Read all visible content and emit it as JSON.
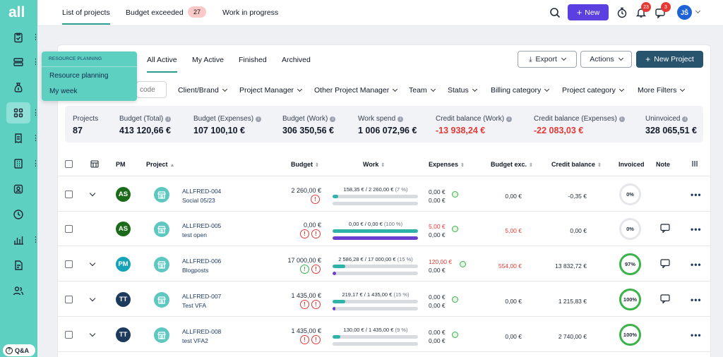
{
  "app": {
    "logo": "all"
  },
  "topbar": {
    "tabs": [
      {
        "label": "List of projects",
        "active": true
      },
      {
        "label": "Budget exceeded",
        "badge": "27"
      },
      {
        "label": "Work in progress"
      }
    ],
    "new_label": "New",
    "alerts_badge": "23",
    "messages_badge": "3",
    "user_initials": "JŠ"
  },
  "dropdown": {
    "header": "RESOURCE PLANNING",
    "items": [
      "Resource planning",
      "My week"
    ]
  },
  "subtabs": [
    "All Active",
    "My Active",
    "Finished",
    "Archived"
  ],
  "toolbar": {
    "export": "Export",
    "actions": "Actions",
    "new_project": "New Project"
  },
  "search": {
    "placeholder": "code"
  },
  "filters": [
    "Client/Brand",
    "Project Manager",
    "Other Project Manager",
    "Team",
    "Status",
    "Billing category",
    "Project category",
    "More Filters"
  ],
  "stats": [
    {
      "label": "Projects",
      "value": "87"
    },
    {
      "label": "Budget (Total)",
      "value": "413 120,66 €"
    },
    {
      "label": "Budget (Expenses)",
      "value": "107 100,10 €"
    },
    {
      "label": "Budget (Work)",
      "value": "306 350,56 €"
    },
    {
      "label": "Work spend",
      "value": "1 006 072,96 €"
    },
    {
      "label": "Credit balance (Work)",
      "value": "-13 938,24 €"
    },
    {
      "label": "Credit balance (Expenses)",
      "value": "-22 083,03 €"
    },
    {
      "label": "Uninvoiced",
      "value": "328 065,51 €"
    }
  ],
  "columns": {
    "pm": "PM",
    "project": "Project",
    "budget": "Budget",
    "work": "Work",
    "expenses": "Expenses",
    "budget_exc": "Budget exc.",
    "credit_balance": "Credit balance",
    "invoiced": "Invoiced",
    "note": "Note"
  },
  "rows": [
    {
      "pm": "AS",
      "pm_color": "#1b6b1b",
      "code": "ALLFRED-004",
      "name": "Social 05/23",
      "budget": "2 260,00 €",
      "work_spent": "158,35 €",
      "work_budget": "2 260,00 €",
      "work_pct": "(7 %)",
      "work_fill": 0.07,
      "exp_fill": 0.0,
      "exp1": "0,00 €",
      "exp2": "0,00 €",
      "budget_exc": "0,00 €",
      "credit": "-0,35 €",
      "invoiced": "0%",
      "has_note": false
    },
    {
      "pm": "AS",
      "pm_color": "#1b6b1b",
      "code": "ALLFRED-005",
      "name": "test open",
      "budget": "0,00 €",
      "work_spent": "0,00 €",
      "work_budget": "0,00 €",
      "work_pct": "(100 %)",
      "work_fill": 1.0,
      "exp_fill": 1.0,
      "exp1": "5,00 €",
      "exp2": "0,00 €",
      "budget_exc": "5,00 €",
      "credit": "0,00 €",
      "invoiced": "0%",
      "has_note": true
    },
    {
      "pm": "PM",
      "pm_color": "#14a3b8",
      "code": "ALLFRED-006",
      "name": "Blogposts",
      "budget": "17 000,00 €",
      "work_spent": "2 586,28 €",
      "work_budget": "17 000,00 €",
      "work_pct": "(15 %)",
      "work_fill": 0.15,
      "exp_fill": 0.04,
      "exp1": "120,00 €",
      "exp2": "0,00 €",
      "budget_exc": "554,00 €",
      "credit": "13 832,72 €",
      "invoiced": "97%",
      "has_note": true
    },
    {
      "pm": "TT",
      "pm_color": "#1c3a5c",
      "code": "ALLFRED-007",
      "name": "Test VFA",
      "budget": "1 435,00 €",
      "work_spent": "219,17 €",
      "work_budget": "1 435,00 €",
      "work_pct": "(15 %)",
      "work_fill": 0.15,
      "exp_fill": 0.03,
      "exp1": "0,00 €",
      "exp2": "0,00 €",
      "budget_exc": "0,00 €",
      "credit": "1 215,83 €",
      "invoiced": "100%",
      "has_note": true
    },
    {
      "pm": "TT",
      "pm_color": "#1c3a5c",
      "code": "ALLFRED-008",
      "name": "test VFA2",
      "budget": "1 435,00 €",
      "work_spent": "130,00 €",
      "work_budget": "1 435,00 €",
      "work_pct": "(9 %)",
      "work_fill": 0.09,
      "exp_fill": 0.0,
      "exp1": "0,00 €",
      "exp2": "0,00 €",
      "budget_exc": "0,00 €",
      "credit": "2 740,00 €",
      "invoiced": "100%",
      "has_note": false
    }
  ],
  "qa": {
    "label": "Q&A"
  }
}
